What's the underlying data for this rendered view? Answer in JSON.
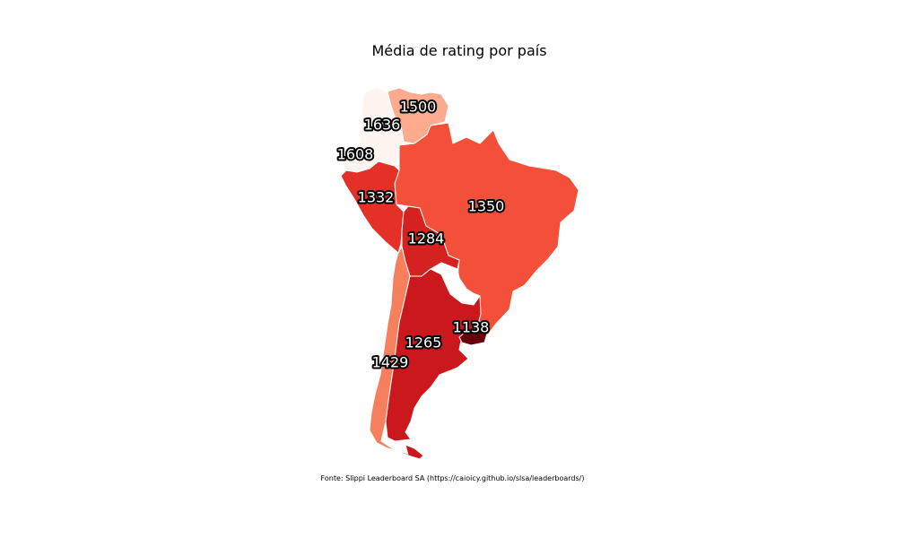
{
  "title": "Média de rating por país",
  "source": "Fonte: Slippi Leaderboard SA (https://caioicy.github.io/slsa/leaderboards/)",
  "colors": {
    "brazil": "#f44f39",
    "argentina": "#cb181d",
    "chile": "#f6805e",
    "peru": "#e43027",
    "bolivia": "#d52221",
    "colombia": "#fff5f0",
    "venezuela": "#fcab8f",
    "ecuador": "#fff5f0",
    "uruguay": "#67000d",
    "paraguay": "#ffffff"
  },
  "labels": {
    "venezuela": "1500",
    "colombia": "1636",
    "ecuador": "1608",
    "peru": "1332",
    "brazil": "1350",
    "bolivia": "1284",
    "uruguay": "1138",
    "argentina": "1265",
    "chile": "1429"
  }
}
